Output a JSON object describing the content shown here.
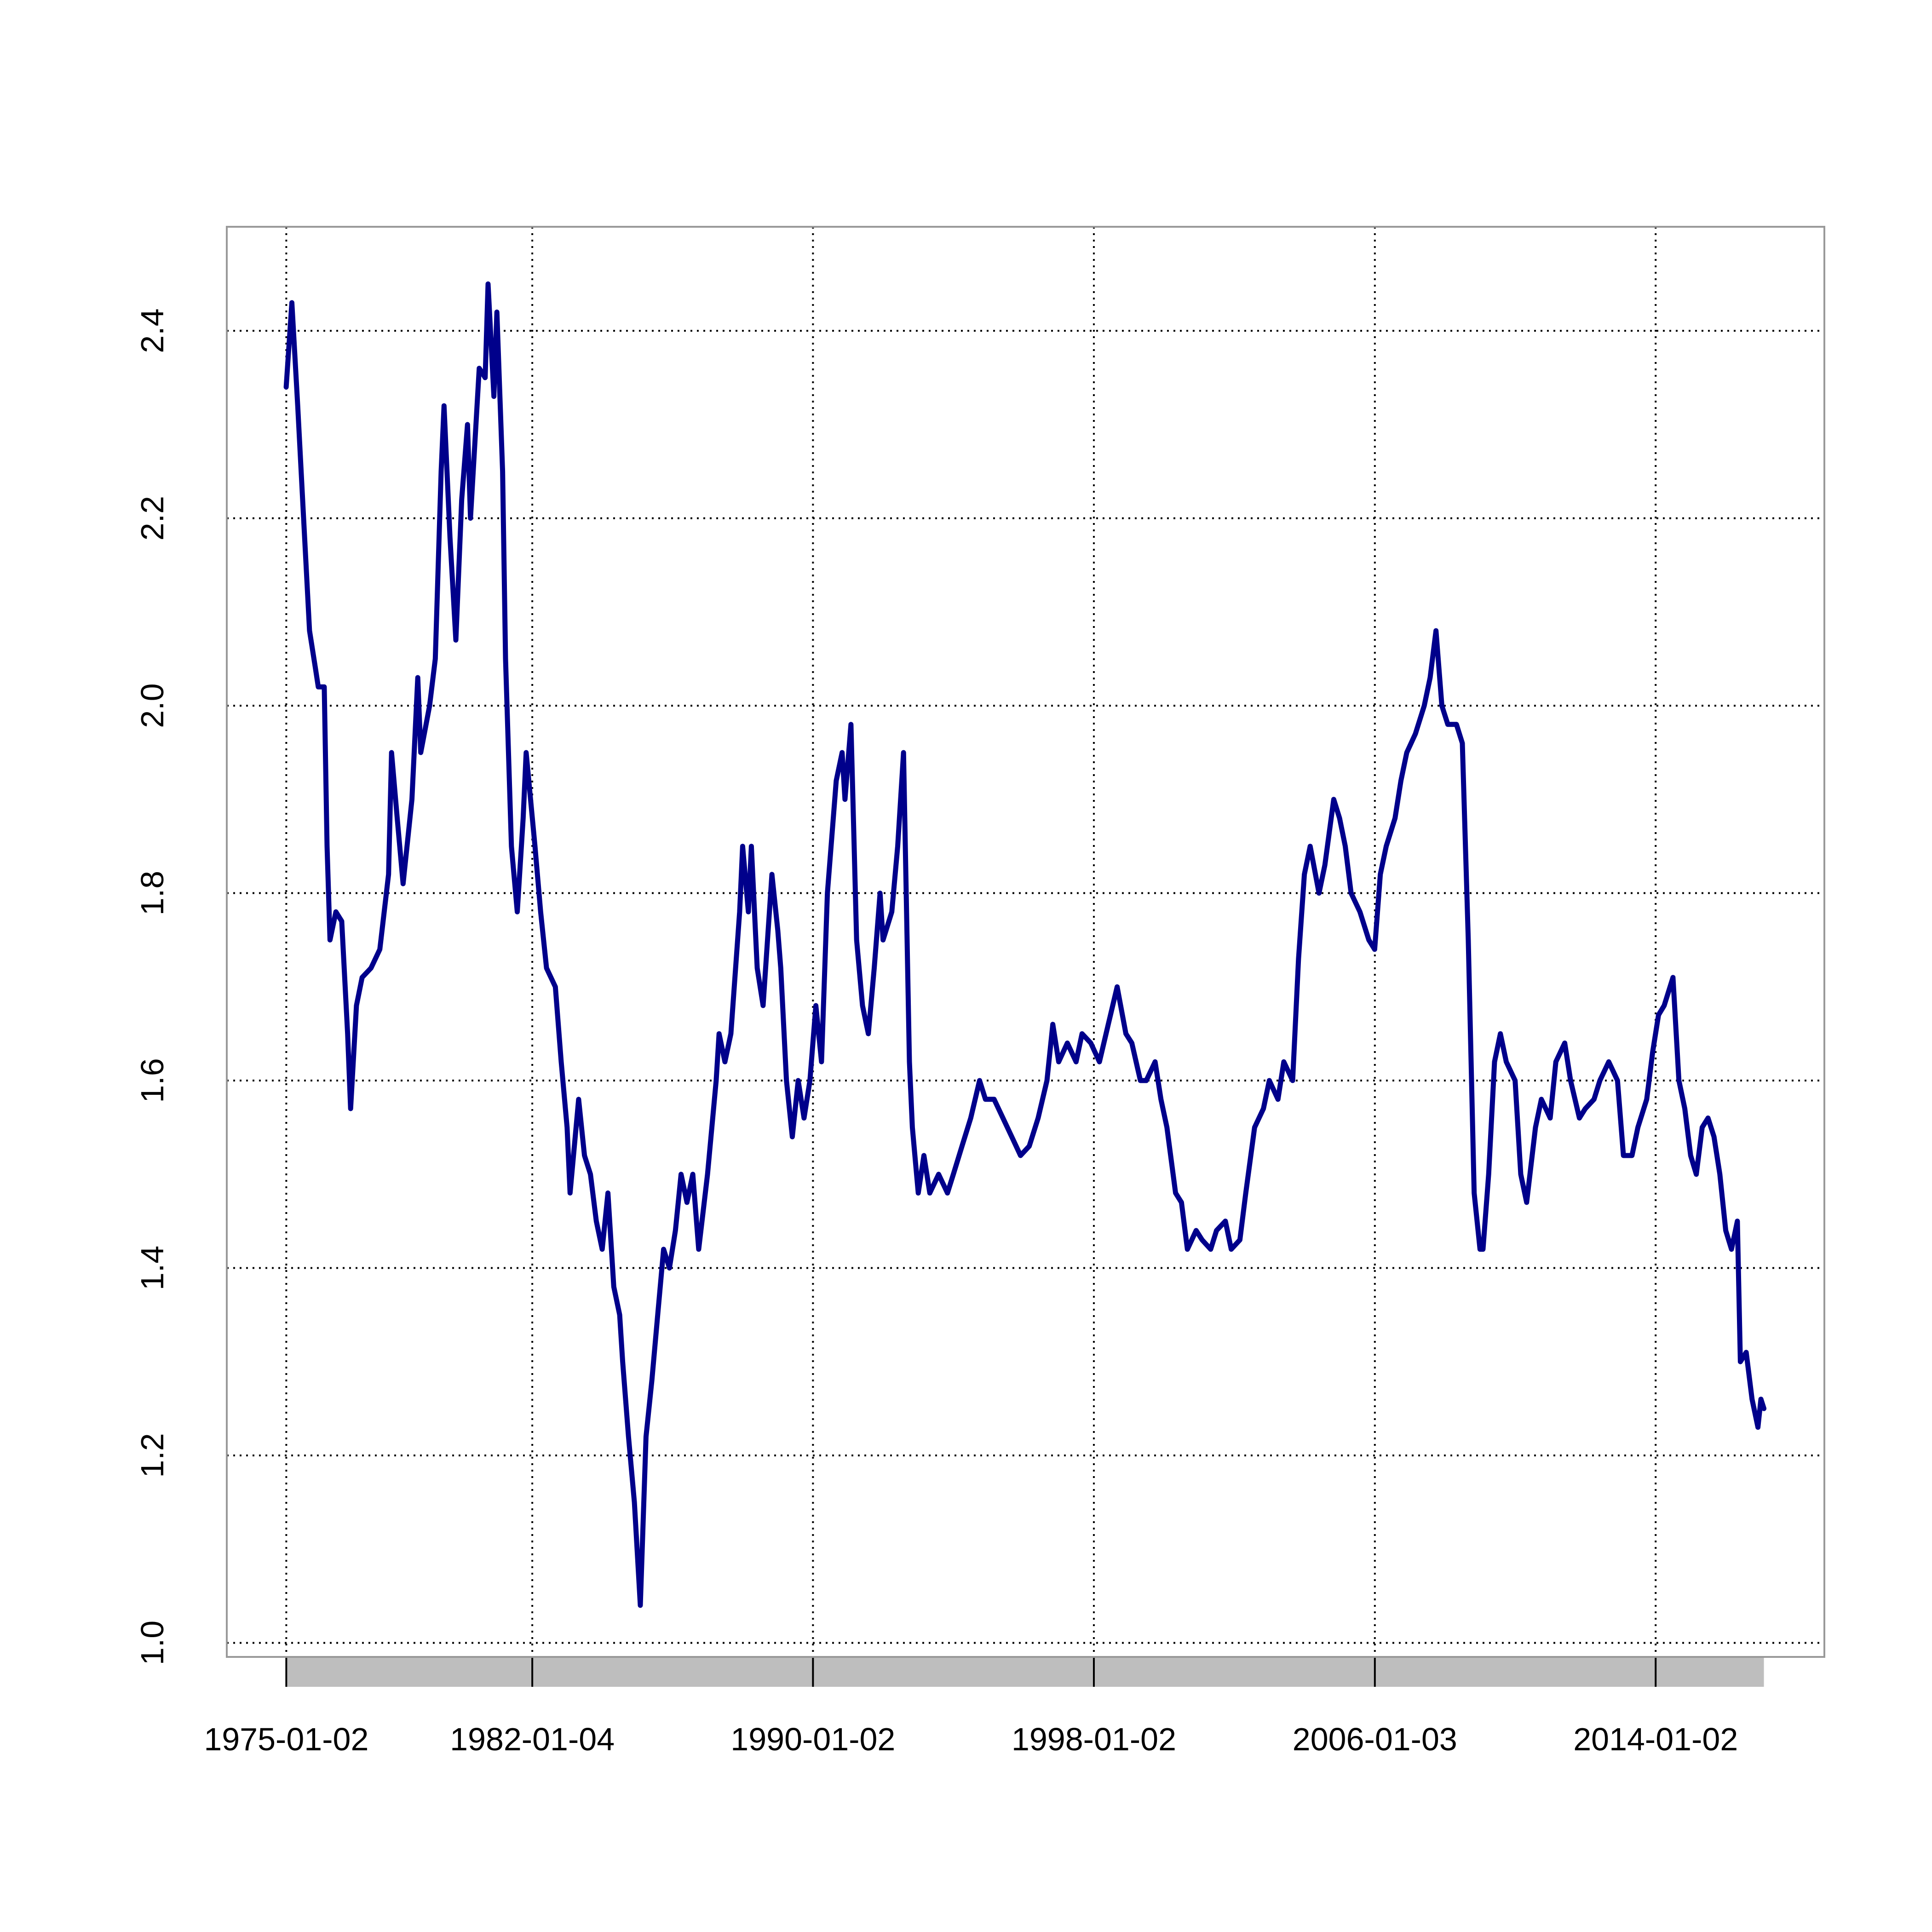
{
  "chart_data": {
    "type": "line",
    "color": "#00008b",
    "grid": true,
    "x": [
      "1975-01-01",
      "1975-03-01",
      "1975-05-01",
      "1975-07-01",
      "1975-09-01",
      "1975-11-01",
      "1975-12-01",
      "1976-02-01",
      "1976-03-01",
      "1976-04-01",
      "1976-06-01",
      "1976-08-01",
      "1976-10-01",
      "1976-11-01",
      "1977-01-01",
      "1977-03-01",
      "1977-06-01",
      "1977-09-01",
      "1977-12-01",
      "1978-01-01",
      "1978-03-01",
      "1978-05-01",
      "1978-08-01",
      "1978-10-01",
      "1978-11-01",
      "1979-02-01",
      "1979-04-01",
      "1979-06-01",
      "1979-07-01",
      "1979-09-01",
      "1979-11-01",
      "1980-01-01",
      "1980-03-01",
      "1980-04-01",
      "1980-07-01",
      "1980-09-01",
      "1980-10-01",
      "1980-12-01",
      "1981-01-01",
      "1981-03-01",
      "1981-04-01",
      "1981-06-01",
      "1981-08-01",
      "1981-10-01",
      "1981-11-01",
      "1982-02-01",
      "1982-04-01",
      "1982-06-01",
      "1982-09-01",
      "1982-11-01",
      "1983-01-01",
      "1983-02-01",
      "1983-05-01",
      "1983-07-01",
      "1983-09-01",
      "1983-11-01",
      "1984-01-01",
      "1984-03-01",
      "1984-05-01",
      "1984-07-01",
      "1984-08-01",
      "1984-10-01",
      "1984-12-01",
      "1985-02-01",
      "1985-04-01",
      "1985-06-01",
      "1985-08-01",
      "1985-10-01",
      "1985-12-01",
      "1986-02-01",
      "1986-04-01",
      "1986-06-01",
      "1986-08-01",
      "1986-10-01",
      "1987-01-01",
      "1987-04-01",
      "1987-05-01",
      "1987-07-01",
      "1987-09-01",
      "1987-12-01",
      "1988-01-01",
      "1988-03-01",
      "1988-04-01",
      "1988-06-01",
      "1988-08-01",
      "1988-11-01",
      "1989-01-01",
      "1989-02-01",
      "1989-04-01",
      "1989-06-01",
      "1989-08-01",
      "1989-10-01",
      "1989-12-01",
      "1990-02-01",
      "1990-04-01",
      "1990-06-01",
      "1990-09-01",
      "1990-11-01",
      "1990-12-01",
      "1991-02-01",
      "1991-04-01",
      "1991-06-01",
      "1991-08-01",
      "1991-10-01",
      "1991-12-01",
      "1992-01-01",
      "1992-04-01",
      "1992-06-01",
      "1992-08-01",
      "1992-10-01",
      "1992-11-01",
      "1993-01-01",
      "1993-03-01",
      "1993-05-01",
      "1993-08-01",
      "1993-11-01",
      "1994-01-01",
      "1994-04-01",
      "1994-07-01",
      "1994-10-01",
      "1994-12-01",
      "1995-03-01",
      "1995-06-01",
      "1995-09-01",
      "1995-12-01",
      "1996-03-01",
      "1996-06-01",
      "1996-09-01",
      "1996-11-01",
      "1997-01-01",
      "1997-04-01",
      "1997-07-01",
      "1997-09-01",
      "1997-12-01",
      "1998-03-01",
      "1998-06-01",
      "1998-09-01",
      "1998-12-01",
      "1999-02-01",
      "1999-05-01",
      "1999-07-01",
      "1999-10-01",
      "1999-12-01",
      "2000-02-01",
      "2000-05-01",
      "2000-07-01",
      "2000-09-01",
      "2000-12-01",
      "2001-02-01",
      "2001-05-01",
      "2001-07-01",
      "2001-10-01",
      "2001-12-01",
      "2002-03-01",
      "2002-05-01",
      "2002-08-01",
      "2002-11-01",
      "2003-01-01",
      "2003-04-01",
      "2003-06-01",
      "2003-09-01",
      "2003-11-01",
      "2004-01-01",
      "2004-03-01",
      "2004-06-01",
      "2004-08-01",
      "2004-11-01",
      "2005-01-01",
      "2005-03-01",
      "2005-05-01",
      "2005-08-01",
      "2005-11-01",
      "2006-01-01",
      "2006-03-01",
      "2006-05-01",
      "2006-08-01",
      "2006-10-01",
      "2006-12-01",
      "2007-03-01",
      "2007-06-01",
      "2007-08-01",
      "2007-10-01",
      "2007-12-01",
      "2008-02-01",
      "2008-05-01",
      "2008-07-01",
      "2008-09-01",
      "2008-11-01",
      "2009-01-01",
      "2009-02-01",
      "2009-04-01",
      "2009-06-01",
      "2009-08-01",
      "2009-10-01",
      "2010-01-01",
      "2010-03-01",
      "2010-05-01",
      "2010-08-01",
      "2010-10-01",
      "2011-01-01",
      "2011-03-01",
      "2011-06-01",
      "2011-08-01",
      "2011-11-01",
      "2012-01-01",
      "2012-04-01",
      "2012-06-01",
      "2012-09-01",
      "2012-12-01",
      "2013-02-01",
      "2013-05-01",
      "2013-07-01",
      "2013-10-01",
      "2013-12-01",
      "2014-02-01",
      "2014-04-01",
      "2014-07-01",
      "2014-09-01",
      "2014-11-01",
      "2015-01-01",
      "2015-03-01",
      "2015-05-01",
      "2015-07-01",
      "2015-09-01",
      "2015-11-01",
      "2016-01-01",
      "2016-03-01",
      "2016-05-01",
      "2016-06-01",
      "2016-08-01",
      "2016-10-01",
      "2016-12-01",
      "2017-01-01",
      "2017-02-01"
    ],
    "values": [
      2.34,
      2.43,
      2.32,
      2.2,
      2.08,
      2.04,
      2.02,
      2.02,
      1.85,
      1.75,
      1.78,
      1.77,
      1.65,
      1.57,
      1.68,
      1.71,
      1.72,
      1.74,
      1.82,
      1.95,
      1.88,
      1.81,
      1.9,
      2.03,
      1.95,
      2.0,
      2.05,
      2.25,
      2.32,
      2.18,
      2.07,
      2.22,
      2.3,
      2.2,
      2.36,
      2.35,
      2.45,
      2.33,
      2.42,
      2.25,
      2.05,
      1.85,
      1.78,
      1.88,
      1.95,
      1.85,
      1.78,
      1.72,
      1.7,
      1.62,
      1.55,
      1.48,
      1.58,
      1.52,
      1.5,
      1.45,
      1.42,
      1.48,
      1.38,
      1.35,
      1.3,
      1.22,
      1.15,
      1.04,
      1.22,
      1.28,
      1.35,
      1.42,
      1.4,
      1.44,
      1.5,
      1.47,
      1.5,
      1.42,
      1.5,
      1.6,
      1.65,
      1.62,
      1.65,
      1.78,
      1.85,
      1.78,
      1.85,
      1.72,
      1.68,
      1.82,
      1.76,
      1.72,
      1.6,
      1.54,
      1.6,
      1.56,
      1.6,
      1.68,
      1.62,
      1.8,
      1.92,
      1.95,
      1.9,
      1.98,
      1.75,
      1.68,
      1.65,
      1.72,
      1.8,
      1.75,
      1.78,
      1.85,
      1.95,
      1.62,
      1.55,
      1.48,
      1.52,
      1.48,
      1.5,
      1.48,
      1.5,
      1.53,
      1.56,
      1.6,
      1.58,
      1.58,
      1.56,
      1.54,
      1.52,
      1.53,
      1.56,
      1.6,
      1.66,
      1.62,
      1.64,
      1.62,
      1.65,
      1.64,
      1.62,
      1.66,
      1.7,
      1.65,
      1.64,
      1.6,
      1.6,
      1.62,
      1.58,
      1.55,
      1.48,
      1.47,
      1.42,
      1.44,
      1.43,
      1.42,
      1.44,
      1.45,
      1.42,
      1.43,
      1.48,
      1.55,
      1.57,
      1.6,
      1.58,
      1.62,
      1.6,
      1.73,
      1.82,
      1.85,
      1.8,
      1.83,
      1.9,
      1.88,
      1.85,
      1.8,
      1.78,
      1.75,
      1.74,
      1.82,
      1.85,
      1.88,
      1.92,
      1.95,
      1.97,
      2.0,
      2.03,
      2.08,
      2.0,
      1.98,
      1.98,
      1.96,
      1.75,
      1.48,
      1.42,
      1.42,
      1.5,
      1.62,
      1.65,
      1.62,
      1.6,
      1.5,
      1.47,
      1.55,
      1.58,
      1.56,
      1.62,
      1.64,
      1.6,
      1.56,
      1.57,
      1.58,
      1.6,
      1.62,
      1.6,
      1.52,
      1.52,
      1.55,
      1.58,
      1.63,
      1.67,
      1.68,
      1.71,
      1.6,
      1.57,
      1.52,
      1.5,
      1.55,
      1.56,
      1.54,
      1.5,
      1.44,
      1.42,
      1.45,
      1.3,
      1.31,
      1.26,
      1.23,
      1.26,
      1.25
    ],
    "xlim": [
      "1973-04-23",
      "2018-10-23"
    ],
    "xticks": [
      "1975-01-02",
      "1982-01-04",
      "1990-01-02",
      "1998-01-02",
      "2006-01-03",
      "2014-01-02"
    ],
    "ylim": [
      0.985,
      2.511
    ],
    "yticks": [
      {
        "value": 1,
        "label": "1.0"
      },
      1.2,
      1.4,
      1.6,
      1.8,
      {
        "value": 2,
        "label": "2.0"
      },
      2.2,
      2.4
    ]
  }
}
